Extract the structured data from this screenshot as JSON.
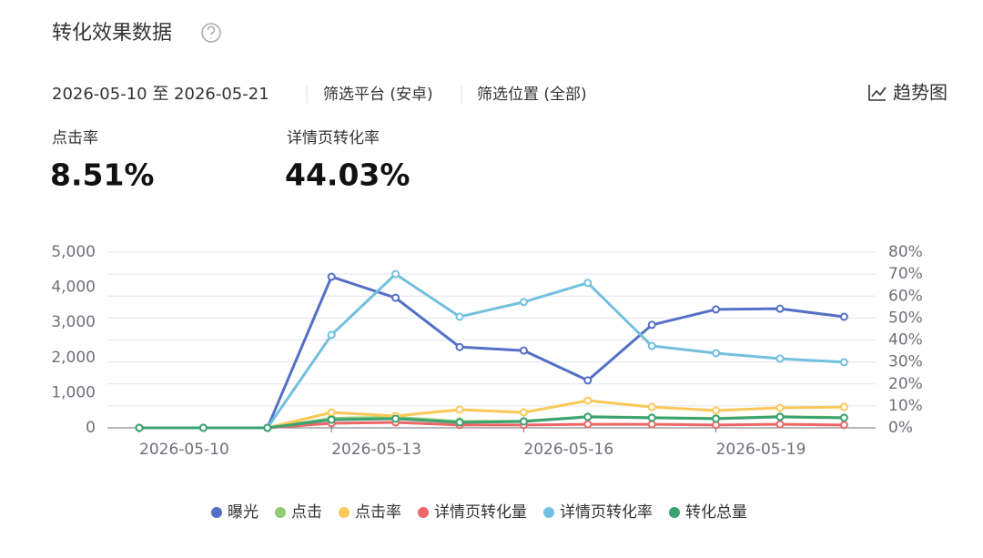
{
  "header": {
    "title": "转化效果数据",
    "date_range": "2026-05-10 至 2026-05-21",
    "platform_filter": "筛选平台 (安卓)",
    "position_filter": "筛选位置 (全部)",
    "trend_button": "趋势图"
  },
  "metrics": [
    {
      "label": "点击率",
      "value": "8.51%"
    },
    {
      "label": "详情页转化率",
      "value": "44.03%"
    }
  ],
  "chart_data": {
    "type": "line",
    "categories": [
      "2026-05-10",
      null,
      null,
      "2026-05-13",
      null,
      null,
      "2026-05-16",
      null,
      null,
      "2026-05-19",
      null,
      null
    ],
    "ylim": [
      0,
      5000
    ],
    "yticks": [
      0,
      {
        "value": 1000,
        "label": "1,000"
      },
      {
        "value": 2000,
        "label": "2,000"
      },
      {
        "value": 3000,
        "label": "3,000"
      },
      {
        "value": 4000,
        "label": "4,000"
      },
      {
        "value": 5000,
        "label": "5,000"
      }
    ],
    "y2lim": [
      0,
      80
    ],
    "y2ticks": [
      {
        "value": 0,
        "label": "0%"
      },
      {
        "value": 10,
        "label": "10%"
      },
      {
        "value": 20,
        "label": "20%"
      },
      {
        "value": 30,
        "label": "30%"
      },
      {
        "value": 40,
        "label": "40%"
      },
      {
        "value": 50,
        "label": "50%"
      },
      {
        "value": 60,
        "label": "60%"
      },
      {
        "value": 70,
        "label": "70%"
      },
      {
        "value": 80,
        "label": "80%"
      }
    ],
    "grid": true,
    "legend": "bottom",
    "series": [
      {
        "name": "曝光",
        "color": "#5470c6",
        "values": [
          0,
          0,
          0,
          4300,
          3700,
          2300,
          2200,
          1350,
          2930,
          3370,
          3390,
          3160
        ]
      },
      {
        "name": "点击",
        "color": "#91cc75",
        "values": [
          0,
          0,
          0,
          270,
          300,
          180,
          190,
          320,
          290,
          270,
          320,
          290
        ]
      },
      {
        "name": "点击率",
        "color": "#fac858",
        "axis": "y2",
        "values": [
          0,
          0,
          0,
          7,
          5.4,
          8.3,
          7,
          12.4,
          9.5,
          7.9,
          9.1,
          9.5
        ]
      },
      {
        "name": "详情页转化量",
        "color": "#ee6666",
        "values": [
          0,
          0,
          0,
          130,
          155,
          80,
          80,
          100,
          100,
          80,
          100,
          80
        ]
      },
      {
        "name": "详情页转化率",
        "color": "#73c0de",
        "axis": "y2",
        "values": [
          0,
          0,
          0,
          42.3,
          70,
          50.6,
          57.3,
          66,
          37.3,
          34,
          31.5,
          29.9
        ]
      },
      {
        "name": "转化总量",
        "color": "#3ba272",
        "values": [
          0,
          0,
          0,
          230,
          260,
          155,
          180,
          310,
          285,
          260,
          310,
          285
        ]
      }
    ]
  }
}
